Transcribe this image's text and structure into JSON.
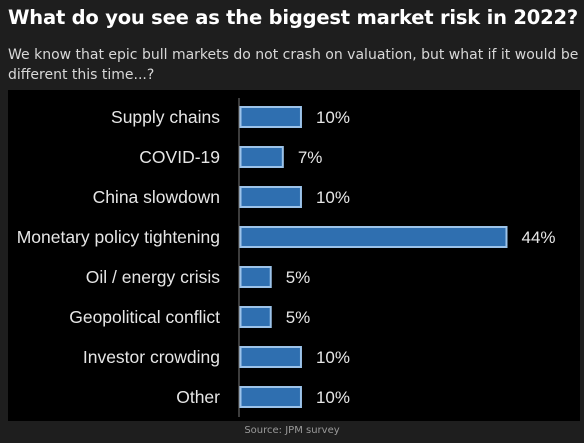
{
  "header": {
    "title": "What do you see as the biggest market risk in 2022?",
    "subtitle": "We know that epic bull markets do not crash on valuation, but what if it would be different this time...?"
  },
  "footer": {
    "source": "Source: JPM survey"
  },
  "colors": {
    "bar_fill": "#2f6fb0",
    "bar_edge": "#9cc3ea",
    "axis": "#7a7a7a",
    "plot_background": "#000000"
  },
  "chart_data": {
    "type": "bar",
    "orientation": "horizontal",
    "categories": [
      "Supply chains",
      "COVID-19",
      "China slowdown",
      "Monetary policy tightening",
      "Oil / energy crisis",
      "Geopolitical conflict",
      "Investor crowding",
      "Other"
    ],
    "values": [
      10,
      7,
      10,
      44,
      5,
      5,
      10,
      10
    ],
    "value_labels": [
      "10%",
      "7%",
      "10%",
      "44%",
      "5%",
      "5%",
      "10%",
      "10%"
    ],
    "unit": "%",
    "xlim": [
      0,
      44
    ],
    "grid": false,
    "legend": "none"
  }
}
